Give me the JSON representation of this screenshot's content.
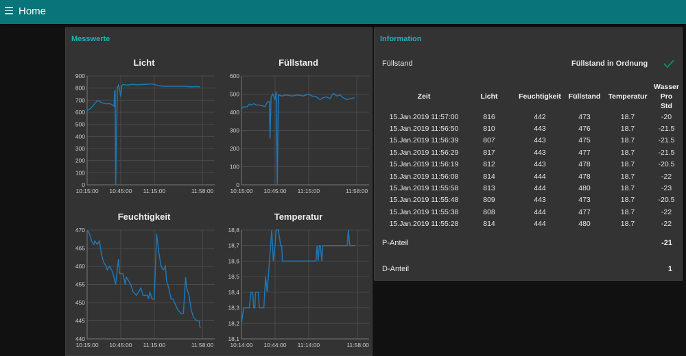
{
  "header": {
    "title": "Home",
    "menu_icon": "hamburger-icon",
    "color": "#097479"
  },
  "messwerte": {
    "title": "Messwerte",
    "line_color": "#1f77b4"
  },
  "chart_data": [
    {
      "type": "line",
      "title": "Licht",
      "xlim": [
        "10:15:00",
        "12:09:00"
      ],
      "ylim": [
        0,
        900
      ],
      "xticks": [
        "10:15:00",
        "10:45:00",
        "11:15:00",
        "11:58:00"
      ],
      "yticks": [
        "0",
        "100",
        "200",
        "300",
        "400",
        "500",
        "600",
        "700",
        "800",
        "900"
      ],
      "grid": true,
      "x": [
        "10:15:00",
        "10:17:00",
        "10:20:00",
        "10:22:00",
        "10:24:00",
        "10:26:00",
        "10:28:00",
        "10:30:00",
        "10:32:00",
        "10:35:00",
        "10:38:00",
        "10:39:00",
        "10:39:30",
        "10:40:00",
        "10:40:30",
        "10:42:00",
        "10:43:00",
        "10:44:00",
        "10:45:00",
        "10:46:00",
        "10:47:00",
        "10:50:00",
        "10:55:00",
        "11:00:00",
        "11:05:00",
        "11:10:00",
        "11:13:00",
        "11:17:00",
        "11:22:00",
        "11:28:00",
        "11:35:00",
        "11:42:00",
        "11:48:00",
        "11:52:00",
        "11:56:00"
      ],
      "y": [
        615,
        625,
        650,
        675,
        695,
        690,
        680,
        675,
        670,
        672,
        660,
        650,
        770,
        785,
        0,
        800,
        825,
        790,
        730,
        820,
        830,
        825,
        830,
        828,
        830,
        832,
        835,
        825,
        815,
        815,
        815,
        815,
        810,
        812,
        810
      ]
    },
    {
      "type": "line",
      "title": "Füllstand",
      "xlim": [
        "10:15:00",
        "12:09:00"
      ],
      "ylim": [
        0,
        600
      ],
      "xticks": [
        "10:15:00",
        "10:45:00",
        "11:15:00",
        "11:58:00"
      ],
      "yticks": [
        "0",
        "100",
        "200",
        "300",
        "400",
        "500",
        "600"
      ],
      "grid": true,
      "x": [
        "10:15:00",
        "10:17:00",
        "10:20:00",
        "10:22:00",
        "10:24:00",
        "10:26:00",
        "10:28:00",
        "10:31:00",
        "10:34:00",
        "10:36:00",
        "10:38:00",
        "10:40:00",
        "10:40:30",
        "10:41:30",
        "10:43:00",
        "10:45:00",
        "10:46:00",
        "10:47:00",
        "10:48:00",
        "10:51:00",
        "10:55:00",
        "11:00:00",
        "11:05:00",
        "11:10:00",
        "11:15:00",
        "11:18:00",
        "11:22:00",
        "11:25:00",
        "11:28:00",
        "11:31:00",
        "11:34:00",
        "11:37:00",
        "11:40:00",
        "11:43:00",
        "11:46:00",
        "11:49:00",
        "11:56:00"
      ],
      "y": [
        420,
        430,
        430,
        445,
        440,
        448,
        440,
        440,
        435,
        430,
        455,
        460,
        255,
        485,
        500,
        470,
        515,
        5,
        495,
        490,
        495,
        490,
        495,
        490,
        500,
        490,
        485,
        470,
        480,
        485,
        475,
        505,
        490,
        495,
        480,
        470,
        480
      ]
    },
    {
      "type": "line",
      "title": "Feuchtigkeit",
      "xlim": [
        "10:15:00",
        "12:09:00"
      ],
      "ylim": [
        440,
        470
      ],
      "xticks": [
        "10:15:00",
        "10:45:00",
        "11:15:00",
        "11:58:00"
      ],
      "yticks": [
        "440",
        "445",
        "450",
        "455",
        "460",
        "465",
        "470"
      ],
      "grid": true,
      "x": [
        "10:15:00",
        "10:17:00",
        "10:19:00",
        "10:21:00",
        "10:22:00",
        "10:24:00",
        "10:26:00",
        "10:28:00",
        "10:30:00",
        "10:32:00",
        "10:33:00",
        "10:35:00",
        "10:37:00",
        "10:39:00",
        "10:40:30",
        "10:43:00",
        "10:44:00",
        "10:47:00",
        "10:49:00",
        "10:50:00",
        "10:52:00",
        "10:54:00",
        "10:56:00",
        "10:59:00",
        "11:03:00",
        "11:05:00",
        "11:09:00",
        "11:10:00",
        "11:11:00",
        "11:13:00",
        "11:15:00",
        "11:17:00",
        "11:19:00",
        "11:21:00",
        "11:23:00",
        "11:25:00",
        "11:26:00",
        "11:28:00",
        "11:30:00",
        "11:32:00",
        "11:33:00",
        "11:36:00",
        "11:39:00",
        "11:41:00",
        "11:43:00",
        "11:44:00",
        "11:46:00",
        "11:48:00",
        "11:50:00",
        "11:53:00",
        "11:55:00",
        "11:56:00"
      ],
      "y": [
        470,
        469,
        467,
        466,
        467,
        466,
        467,
        463,
        461,
        460,
        459,
        460,
        459,
        457,
        455,
        462,
        458,
        458,
        455,
        457,
        456,
        455,
        453,
        452,
        454,
        452,
        452,
        451,
        453,
        451,
        451,
        469,
        464,
        460,
        459,
        460,
        456,
        454,
        451,
        451,
        450,
        448,
        447,
        447,
        457,
        454,
        452,
        448,
        446,
        445,
        445,
        443
      ]
    },
    {
      "type": "line",
      "title": "Temperatur",
      "xlim": [
        "10:14:00",
        "12:08:00"
      ],
      "ylim": [
        18.1,
        18.8
      ],
      "xticks": [
        "10:14:00",
        "10:44:00",
        "11:14:00",
        "11:58:00"
      ],
      "yticks": [
        "18,1",
        "18,2",
        "18,3",
        "18,4",
        "18,5",
        "18,6",
        "18,7",
        "18,8"
      ],
      "grid": true,
      "x": [
        "10:14:00",
        "10:16:00",
        "10:21:00",
        "10:22:30",
        "10:24:00",
        "10:25:00",
        "10:26:00",
        "10:26:30",
        "10:29:00",
        "10:30:00",
        "10:34:00",
        "10:35:30",
        "10:37:00",
        "10:39:00",
        "10:41:00",
        "10:42:30",
        "10:44:00",
        "10:45:00",
        "10:47:00",
        "10:49:00",
        "10:50:00",
        "10:50:30",
        "11:20:30",
        "11:21:30",
        "11:22:30",
        "11:23:30",
        "11:24:30",
        "11:25:45",
        "11:26:45",
        "11:48:30",
        "11:49:30",
        "11:50:45",
        "11:55:30"
      ],
      "y": [
        18.2,
        18.3,
        18.3,
        18.4,
        18.4,
        18.3,
        18.3,
        18.4,
        18.4,
        18.3,
        18.3,
        18.5,
        18.4,
        18.6,
        18.8,
        18.6,
        18.7,
        18.8,
        18.8,
        18.7,
        18.7,
        18.6,
        18.6,
        18.7,
        18.6,
        18.7,
        18.7,
        18.6,
        18.7,
        18.7,
        18.8,
        18.7,
        18.7
      ]
    }
  ],
  "information": {
    "title": "Information",
    "status_label": "Füllstand",
    "status_text": "Füllstand in Ordnung",
    "status_icon": "checkmark-icon",
    "status_color": "#13865a",
    "table": {
      "headers": [
        "Zeit",
        "Licht",
        "Feuchtigkeit",
        "Füllstand",
        "Temperatur",
        "Wasser Pro Std"
      ],
      "rows": [
        [
          "15.Jan.2019 11:57:00",
          "816",
          "442",
          "473",
          "18.7",
          "-20"
        ],
        [
          "15.Jan.2019 11:56:50",
          "810",
          "443",
          "476",
          "18.7",
          "-21.5"
        ],
        [
          "15.Jan.2019 11:56:39",
          "807",
          "443",
          "475",
          "18.7",
          "-21.5"
        ],
        [
          "15.Jan.2019 11:56:29",
          "817",
          "443",
          "477",
          "18.7",
          "-21.5"
        ],
        [
          "15.Jan.2019 11:56:19",
          "812",
          "443",
          "478",
          "18.7",
          "-20.5"
        ],
        [
          "15.Jan.2019 11:56:08",
          "814",
          "444",
          "478",
          "18.7",
          "-22"
        ],
        [
          "15.Jan.2019 11:55:58",
          "813",
          "444",
          "480",
          "18.7",
          "-23"
        ],
        [
          "15.Jan.2019 11:55:48",
          "809",
          "443",
          "473",
          "18.7",
          "-20.5"
        ],
        [
          "15.Jan.2019 11:55:38",
          "808",
          "444",
          "477",
          "18.7",
          "-22"
        ],
        [
          "15.Jan.2019 11:55:28",
          "814",
          "444",
          "480",
          "18.7",
          "-22"
        ]
      ]
    },
    "p_label": "P-Anteil",
    "p_value": "-21",
    "d_label": "D-Anteil",
    "d_value": "1"
  }
}
